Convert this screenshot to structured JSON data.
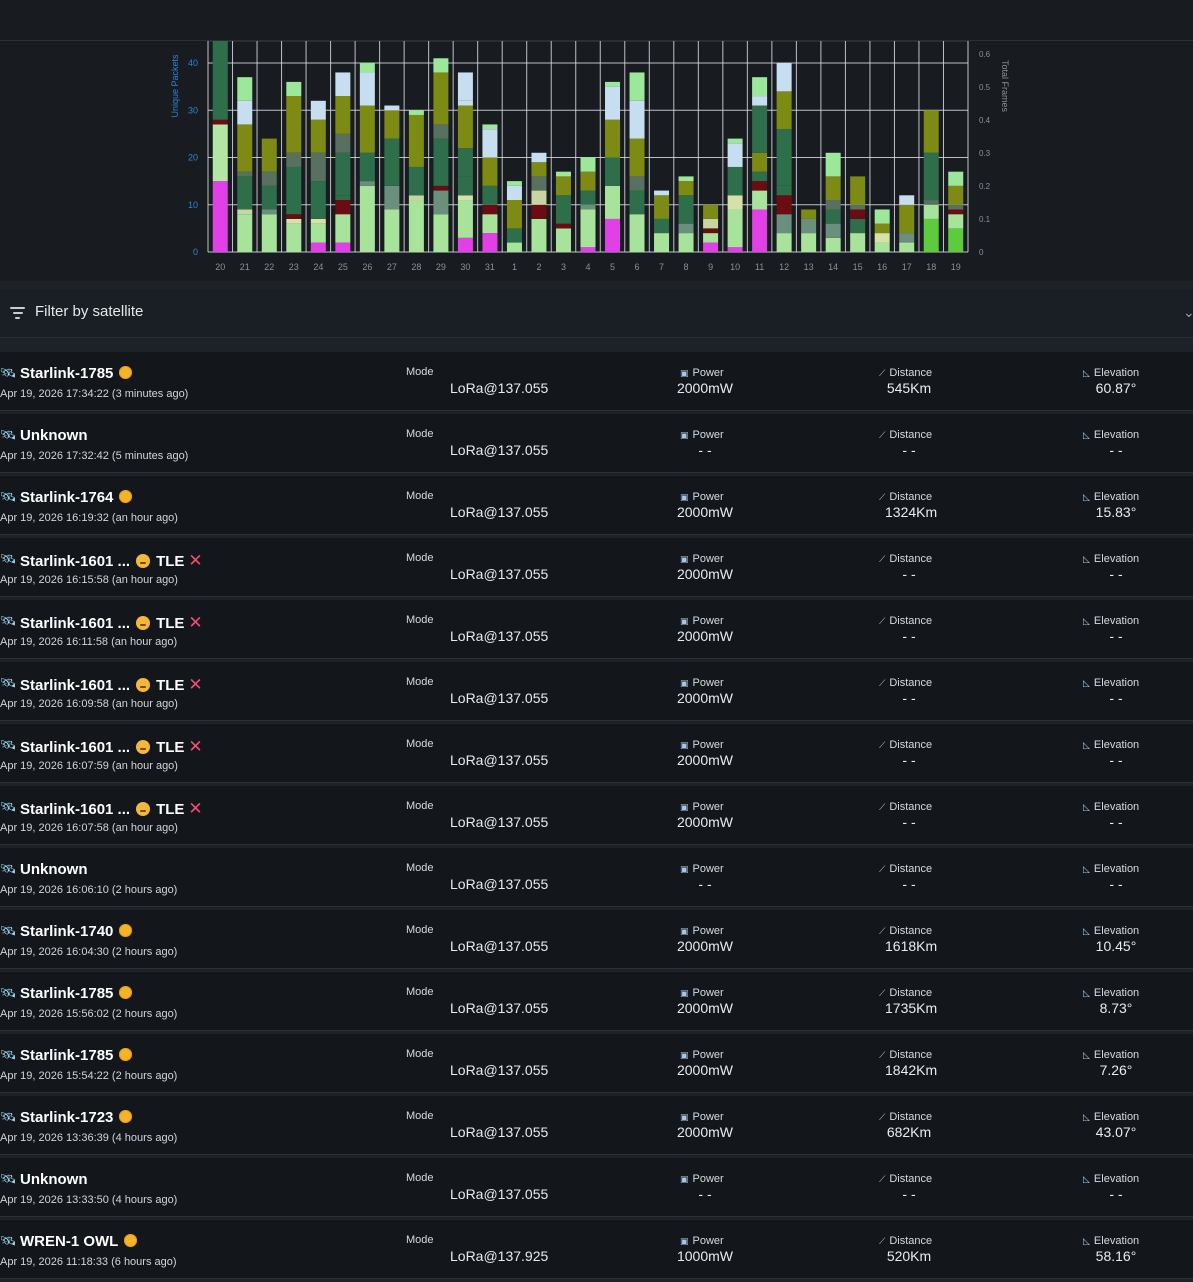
{
  "chart_data": {
    "type": "bar",
    "stacked": true,
    "ylabel": "Unique Packets",
    "y2label": "Total Frames",
    "ylim": [
      0,
      40
    ],
    "y2lim": [
      0,
      0.6
    ],
    "yticks": [
      0,
      10,
      20,
      30,
      40
    ],
    "y2ticks": [
      "0",
      "0.1",
      "0.2",
      "0.3",
      "0.4",
      "0.5",
      "0.6"
    ],
    "grid": true,
    "categories": [
      "20",
      "21",
      "22",
      "23",
      "24",
      "25",
      "26",
      "27",
      "28",
      "29",
      "30",
      "31",
      "1",
      "2",
      "3",
      "4",
      "5",
      "6",
      "7",
      "8",
      "9",
      "10",
      "11",
      "12",
      "13",
      "14",
      "15",
      "16",
      "17",
      "18",
      "19"
    ],
    "stacks": [
      [
        [
          15,
          "#e040e6"
        ],
        [
          12,
          "#b3e6a5"
        ],
        [
          1,
          "#6b0c12"
        ],
        [
          3,
          "#2f6e4a"
        ],
        [
          14,
          "#2f6e4a"
        ],
        [
          4,
          "#7d8a13"
        ]
      ],
      [
        [
          8,
          "#a8e39b"
        ],
        [
          1,
          "#c8d5a0"
        ],
        [
          7,
          "#2f6e4a"
        ],
        [
          1,
          "#577060"
        ],
        [
          10,
          "#7d8a13"
        ],
        [
          5,
          "#c7def0"
        ],
        [
          5,
          "#9be89a"
        ]
      ],
      [
        [
          8,
          "#a8e39b"
        ],
        [
          1,
          "#6a8f7c"
        ],
        [
          5,
          "#2f6e4a"
        ],
        [
          3,
          "#577060"
        ],
        [
          7,
          "#7d8a13"
        ]
      ],
      [
        [
          6,
          "#a8e39b"
        ],
        [
          1,
          "#d7e0a6"
        ],
        [
          1,
          "#6b0c12"
        ],
        [
          10,
          "#2f6e4a"
        ],
        [
          3,
          "#577060"
        ],
        [
          12,
          "#7d8a13"
        ],
        [
          3,
          "#9be89a"
        ]
      ],
      [
        [
          2,
          "#e040e6"
        ],
        [
          4,
          "#a8e39b"
        ],
        [
          1,
          "#d7e0a6"
        ],
        [
          8,
          "#2f6e4a"
        ],
        [
          6,
          "#577060"
        ],
        [
          7,
          "#7d8a13"
        ],
        [
          4,
          "#c7def0"
        ]
      ],
      [
        [
          2,
          "#e040e6"
        ],
        [
          6,
          "#a8e39b"
        ],
        [
          3,
          "#6b0c12"
        ],
        [
          1,
          "#2f6e4a"
        ],
        [
          9,
          "#2f6e4a"
        ],
        [
          4,
          "#577060"
        ],
        [
          8,
          "#7d8a13"
        ],
        [
          5,
          "#c7def0"
        ]
      ],
      [
        [
          14,
          "#a8e39b"
        ],
        [
          1,
          "#6a8f7c"
        ],
        [
          6,
          "#2f6e4a"
        ],
        [
          10,
          "#7d8a13"
        ],
        [
          7,
          "#c7def0"
        ],
        [
          2,
          "#9be89a"
        ]
      ],
      [
        [
          9,
          "#a8e39b"
        ],
        [
          5,
          "#6a8f7c"
        ],
        [
          10,
          "#2f6e4a"
        ],
        [
          6,
          "#7d8a13"
        ],
        [
          1,
          "#c7def0"
        ]
      ],
      [
        [
          11,
          "#a8e39b"
        ],
        [
          1,
          "#c8d5a0"
        ],
        [
          6,
          "#2f6e4a"
        ],
        [
          11,
          "#7d8a13"
        ],
        [
          1,
          "#9be89a"
        ]
      ],
      [
        [
          8,
          "#a8e39b"
        ],
        [
          5,
          "#6a8f7c"
        ],
        [
          1,
          "#6b0c12"
        ],
        [
          10,
          "#2f6e4a"
        ],
        [
          3,
          "#577060"
        ],
        [
          11,
          "#7d8a13"
        ],
        [
          3,
          "#9be89a"
        ]
      ],
      [
        [
          3,
          "#e040e6"
        ],
        [
          8,
          "#a8e39b"
        ],
        [
          1,
          "#d7e0a6"
        ],
        [
          4,
          "#2f6e4a"
        ],
        [
          6,
          "#2f6e4a"
        ],
        [
          9,
          "#7d8a13"
        ],
        [
          1,
          "#c7def0"
        ],
        [
          6,
          "#c7def0"
        ]
      ],
      [
        [
          4,
          "#e040e6"
        ],
        [
          4,
          "#a8e39b"
        ],
        [
          2,
          "#6b0c12"
        ],
        [
          4,
          "#2f6e4a"
        ],
        [
          6,
          "#7d8a13"
        ],
        [
          6,
          "#c7def0"
        ],
        [
          1,
          "#9be89a"
        ]
      ],
      [
        [
          2,
          "#a8e39b"
        ],
        [
          3,
          "#2f6e4a"
        ],
        [
          6,
          "#7d8a13"
        ],
        [
          3,
          "#c7def0"
        ],
        [
          1,
          "#9be89a"
        ]
      ],
      [
        [
          7,
          "#a8e39b"
        ],
        [
          3,
          "#6b0c12"
        ],
        [
          3,
          "#c8d5a0"
        ],
        [
          3,
          "#577060"
        ],
        [
          3,
          "#7d8a13"
        ],
        [
          2,
          "#c7def0"
        ]
      ],
      [
        [
          5,
          "#a8e39b"
        ],
        [
          1,
          "#6b0c12"
        ],
        [
          6,
          "#2f6e4a"
        ],
        [
          4,
          "#7d8a13"
        ],
        [
          1,
          "#9be89a"
        ]
      ],
      [
        [
          1,
          "#e040e6"
        ],
        [
          8,
          "#a8e39b"
        ],
        [
          1,
          "#6a8f7c"
        ],
        [
          3,
          "#2f6e4a"
        ],
        [
          4,
          "#7d8a13"
        ],
        [
          3,
          "#9be89a"
        ]
      ],
      [
        [
          7,
          "#e040e6"
        ],
        [
          7,
          "#a8e39b"
        ],
        [
          6,
          "#2f6e4a"
        ],
        [
          8,
          "#7d8a13"
        ],
        [
          7,
          "#c7def0"
        ],
        [
          1,
          "#9be89a"
        ]
      ],
      [
        [
          8,
          "#a8e39b"
        ],
        [
          5,
          "#2f6e4a"
        ],
        [
          3,
          "#577060"
        ],
        [
          8,
          "#7d8a13"
        ],
        [
          8,
          "#c7def0"
        ],
        [
          6,
          "#9be89a"
        ]
      ],
      [
        [
          4,
          "#a8e39b"
        ],
        [
          3,
          "#2f6e4a"
        ],
        [
          5,
          "#7d8a13"
        ],
        [
          1,
          "#c7def0"
        ]
      ],
      [
        [
          4,
          "#a8e39b"
        ],
        [
          2,
          "#6a8f7c"
        ],
        [
          6,
          "#2f6e4a"
        ],
        [
          3,
          "#7d8a13"
        ],
        [
          1,
          "#9be89a"
        ]
      ],
      [
        [
          2,
          "#e040e6"
        ],
        [
          2,
          "#a8e39b"
        ],
        [
          1,
          "#6b0c12"
        ],
        [
          2,
          "#c8d5a0"
        ],
        [
          3,
          "#7d8a13"
        ]
      ],
      [
        [
          1,
          "#e040e6"
        ],
        [
          8,
          "#a8e39b"
        ],
        [
          3,
          "#d7e0a6"
        ],
        [
          6,
          "#2f6e4a"
        ],
        [
          5,
          "#c7def0"
        ],
        [
          1,
          "#9be89a"
        ]
      ],
      [
        [
          9,
          "#e040e6"
        ],
        [
          4,
          "#a8e39b"
        ],
        [
          2,
          "#6b0c12"
        ],
        [
          2,
          "#2f6e4a"
        ],
        [
          4,
          "#7d8a13"
        ],
        [
          10,
          "#2f6e4a"
        ],
        [
          2,
          "#c7def0"
        ],
        [
          4,
          "#9be89a"
        ]
      ],
      [
        [
          4,
          "#a8e39b"
        ],
        [
          4,
          "#6a8f7c"
        ],
        [
          4,
          "#6b0c12"
        ],
        [
          2,
          "#2f6e4a"
        ],
        [
          12,
          "#2f6e4a"
        ],
        [
          8,
          "#7d8a13"
        ],
        [
          6,
          "#c7def0"
        ]
      ],
      [
        [
          4,
          "#a8e39b"
        ],
        [
          3,
          "#6a8f7c"
        ],
        [
          2,
          "#7d8a13"
        ]
      ],
      [
        [
          3,
          "#a8e39b"
        ],
        [
          3,
          "#6a8f7c"
        ],
        [
          3,
          "#2f6e4a"
        ],
        [
          2,
          "#577060"
        ],
        [
          5,
          "#7d8a13"
        ],
        [
          5,
          "#9be89a"
        ]
      ],
      [
        [
          4,
          "#a8e39b"
        ],
        [
          3,
          "#2f6e4a"
        ],
        [
          2,
          "#6b0c12"
        ],
        [
          1,
          "#577060"
        ],
        [
          6,
          "#7d8a13"
        ]
      ],
      [
        [
          2,
          "#a8e39b"
        ],
        [
          2,
          "#d7e0a6"
        ],
        [
          2,
          "#7d8a13"
        ],
        [
          3,
          "#9be89a"
        ]
      ],
      [
        [
          2,
          "#a8e39b"
        ],
        [
          2,
          "#6a8f7c"
        ],
        [
          6,
          "#7d8a13"
        ],
        [
          2,
          "#c7def0"
        ]
      ],
      [
        [
          7,
          "#5ccb3d"
        ],
        [
          3,
          "#a8e39b"
        ],
        [
          1,
          "#577060"
        ],
        [
          10,
          "#2f6e4a"
        ],
        [
          9,
          "#7d8a13"
        ]
      ],
      [
        [
          5,
          "#5ccb3d"
        ],
        [
          3,
          "#a8e39b"
        ],
        [
          1,
          "#6b0c12"
        ],
        [
          1,
          "#577060"
        ],
        [
          4,
          "#7d8a13"
        ],
        [
          3,
          "#9be89a"
        ]
      ]
    ]
  },
  "filter": {
    "label": "Filter by satellite"
  },
  "labels": {
    "mode": "Mode",
    "power": "Power",
    "distance": "Distance",
    "elevation": "Elevation"
  },
  "rows": [
    {
      "name": "Starlink-1785",
      "badge": "sun",
      "time": "Apr 19, 2026 17:34:22 (3 minutes ago)",
      "mode": "LoRa@137.055",
      "power": "2000mW",
      "distance": "545Km",
      "elevation": "60.87°"
    },
    {
      "name": "Unknown",
      "badge": "",
      "time": "Apr 19, 2026 17:32:42 (5 minutes ago)",
      "mode": "LoRa@137.055",
      "power": "- -",
      "distance": "- -",
      "elevation": "- -"
    },
    {
      "name": "Starlink-1764",
      "badge": "sun",
      "time": "Apr 19, 2026 16:19:32 (an hour ago)",
      "mode": "LoRa@137.055",
      "power": "2000mW",
      "distance": "1324Km",
      "elevation": "15.83°"
    },
    {
      "name": "Starlink-1601 ...",
      "badge": "tle",
      "tle": "TLE",
      "time": "Apr 19, 2026 16:15:58 (an hour ago)",
      "mode": "LoRa@137.055",
      "power": "2000mW",
      "distance": "- -",
      "elevation": "- -"
    },
    {
      "name": "Starlink-1601 ...",
      "badge": "tle",
      "tle": "TLE",
      "time": "Apr 19, 2026 16:11:58 (an hour ago)",
      "mode": "LoRa@137.055",
      "power": "2000mW",
      "distance": "- -",
      "elevation": "- -"
    },
    {
      "name": "Starlink-1601 ...",
      "badge": "tle",
      "tle": "TLE",
      "time": "Apr 19, 2026 16:09:58 (an hour ago)",
      "mode": "LoRa@137.055",
      "power": "2000mW",
      "distance": "- -",
      "elevation": "- -"
    },
    {
      "name": "Starlink-1601 ...",
      "badge": "tle",
      "tle": "TLE",
      "time": "Apr 19, 2026 16:07:59 (an hour ago)",
      "mode": "LoRa@137.055",
      "power": "2000mW",
      "distance": "- -",
      "elevation": "- -"
    },
    {
      "name": "Starlink-1601 ...",
      "badge": "tle",
      "tle": "TLE",
      "time": "Apr 19, 2026 16:07:58 (an hour ago)",
      "mode": "LoRa@137.055",
      "power": "2000mW",
      "distance": "- -",
      "elevation": "- -"
    },
    {
      "name": "Unknown",
      "badge": "",
      "time": "Apr 19, 2026 16:06:10 (2 hours ago)",
      "mode": "LoRa@137.055",
      "power": "- -",
      "distance": "- -",
      "elevation": "- -"
    },
    {
      "name": "Starlink-1740",
      "badge": "sun",
      "time": "Apr 19, 2026 16:04:30 (2 hours ago)",
      "mode": "LoRa@137.055",
      "power": "2000mW",
      "distance": "1618Km",
      "elevation": "10.45°"
    },
    {
      "name": "Starlink-1785",
      "badge": "sun",
      "time": "Apr 19, 2026 15:56:02 (2 hours ago)",
      "mode": "LoRa@137.055",
      "power": "2000mW",
      "distance": "1735Km",
      "elevation": "8.73°"
    },
    {
      "name": "Starlink-1785",
      "badge": "sun",
      "time": "Apr 19, 2026 15:54:22 (2 hours ago)",
      "mode": "LoRa@137.055",
      "power": "2000mW",
      "distance": "1842Km",
      "elevation": "7.26°"
    },
    {
      "name": "Starlink-1723",
      "badge": "sun",
      "time": "Apr 19, 2026 13:36:39 (4 hours ago)",
      "mode": "LoRa@137.055",
      "power": "2000mW",
      "distance": "682Km",
      "elevation": "43.07°"
    },
    {
      "name": "Unknown",
      "badge": "",
      "time": "Apr 19, 2026 13:33:50 (4 hours ago)",
      "mode": "LoRa@137.055",
      "power": "- -",
      "distance": "- -",
      "elevation": "- -"
    },
    {
      "name": "WREN-1 OWL",
      "badge": "sun",
      "time": "Apr 19, 2026 11:18:33 (6 hours ago)",
      "mode": "LoRa@137.925",
      "power": "1000mW",
      "distance": "520Km",
      "elevation": "58.16°"
    }
  ]
}
